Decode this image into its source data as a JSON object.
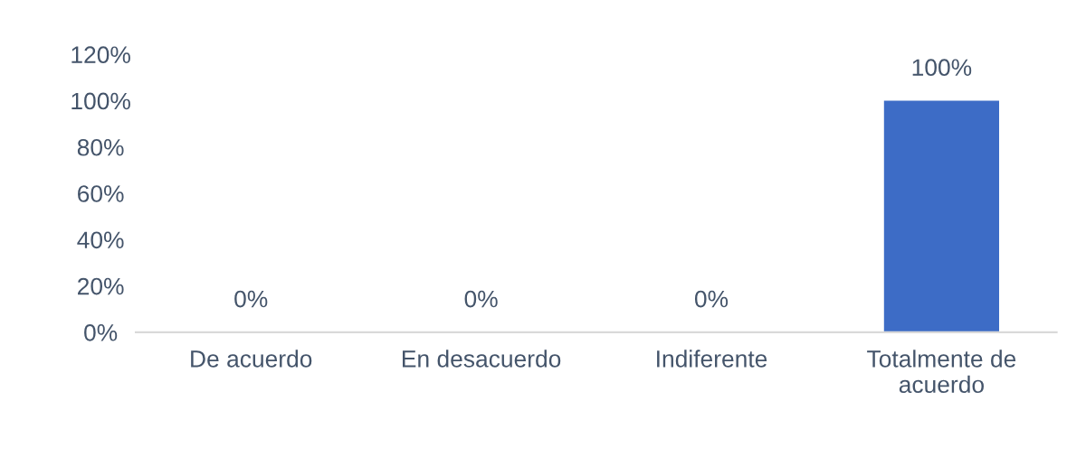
{
  "chart_data": {
    "type": "bar",
    "categories": [
      "De acuerdo",
      "En desacuerdo",
      "Indiferente",
      "Totalmente de\nacuerdo"
    ],
    "values": [
      0,
      0,
      0,
      100
    ],
    "color": "#3d6cc6",
    "value_labels": [
      "0%",
      "0%",
      "0%",
      "100%"
    ],
    "ylim": [
      0,
      120
    ],
    "yticks": [
      {
        "value": 0,
        "label": "0%"
      },
      {
        "value": 20,
        "label": "20%"
      },
      {
        "value": 40,
        "label": "40%"
      },
      {
        "value": 60,
        "label": "60%"
      },
      {
        "value": 80,
        "label": "80%"
      },
      {
        "value": 100,
        "label": "100%"
      },
      {
        "value": 120,
        "label": "120%"
      }
    ],
    "grid": false,
    "legend": false
  }
}
